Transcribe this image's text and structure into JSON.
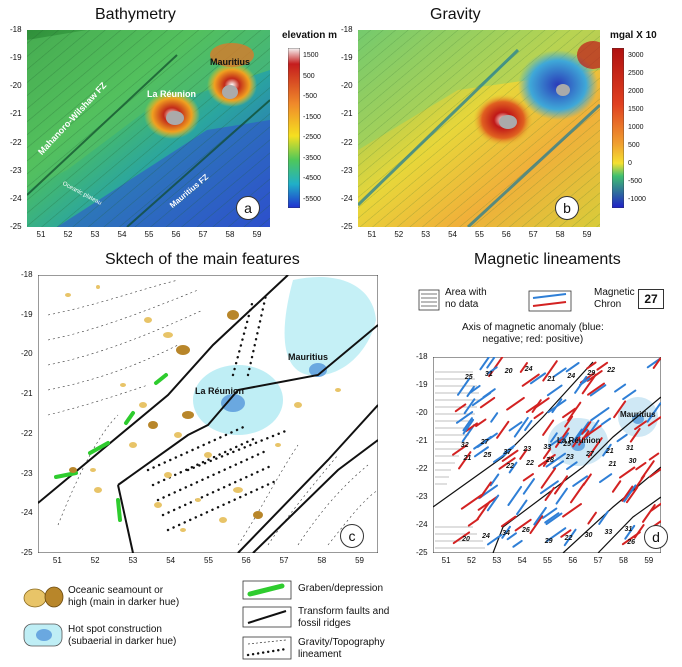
{
  "panels": {
    "a": {
      "title": "Bathymetry",
      "badge": "a",
      "colorbar_title": "elevation m",
      "colorbar_ticks": [
        "1500",
        "500",
        "-500",
        "-1500",
        "-2500",
        "-3500",
        "-4500",
        "-5500"
      ],
      "labels": {
        "fz1": "Mahanoro-Wilshaw FZ",
        "fz2": "Mauritius FZ",
        "reunion": "La Réunion",
        "mauritius": "Mauritius",
        "plat": "Oceanic plateau"
      }
    },
    "b": {
      "title": "Gravity",
      "badge": "b",
      "colorbar_title": "mgal X 10",
      "colorbar_ticks": [
        "3000",
        "2500",
        "2000",
        "1500",
        "1000",
        "500",
        "0",
        "-500",
        "-1000"
      ]
    },
    "c": {
      "title": "Sktech of the main features",
      "badge": "c",
      "labels": {
        "reunion": "La Réunion",
        "mauritius": "Mauritius"
      }
    },
    "d": {
      "title": "Magnetic lineaments",
      "badge": "d",
      "legend_area": "Area with\nno data",
      "legend_chron": "Magnetic\nChron",
      "chron_box": "27",
      "axis_note": "Axis of magnetic anomaly (blue:\nnegative; red: positive)",
      "labels": {
        "reunion": "La Réunion",
        "mauritius": "Mauritius"
      },
      "chrons": [
        "31",
        "27",
        "26",
        "25",
        "33",
        "32",
        "34",
        "33",
        "30",
        "31",
        "24",
        "23",
        "22",
        "21",
        "20",
        "37",
        "29",
        "27",
        "26",
        "25",
        "24",
        "23",
        "22",
        "21",
        "20",
        "28",
        "29",
        "30",
        "31",
        "22",
        "24",
        "21",
        "25",
        "22",
        "21"
      ]
    }
  },
  "axes": {
    "lon_ticks": [
      "51",
      "52",
      "53",
      "54",
      "55",
      "56",
      "57",
      "58",
      "59"
    ],
    "lat_ticks_ab": [
      "-18",
      "-19",
      "-20",
      "-21",
      "-22",
      "-23",
      "-24",
      "-25"
    ],
    "lat_ticks_c": [
      "-18",
      "-19",
      "-20",
      "-21",
      "-22",
      "-23",
      "-24",
      "-25"
    ],
    "lat_ticks_d": [
      "-18",
      "-19",
      "-20",
      "-21",
      "-22",
      "-23",
      "-24",
      "-25"
    ]
  },
  "legend": {
    "seamount": "Oceanic seamount or\nhigh (main in darker hue)",
    "hotspot": "Hot spot construction\n(subaerial in darker hue)",
    "graben": "Graben/depression",
    "transform": "Transform faults and\nfossil ridges",
    "lineament": "Gravity/Topography\nlineament"
  },
  "colors": {
    "graben": "#2ecc2e",
    "seamount_light": "#e8c468",
    "seamount_dark": "#b8862a",
    "hotspot_light": "#bfeef5",
    "hotspot_dark": "#6aa8e0",
    "mag_red": "#d32222",
    "mag_blue": "#2f7fd6"
  }
}
